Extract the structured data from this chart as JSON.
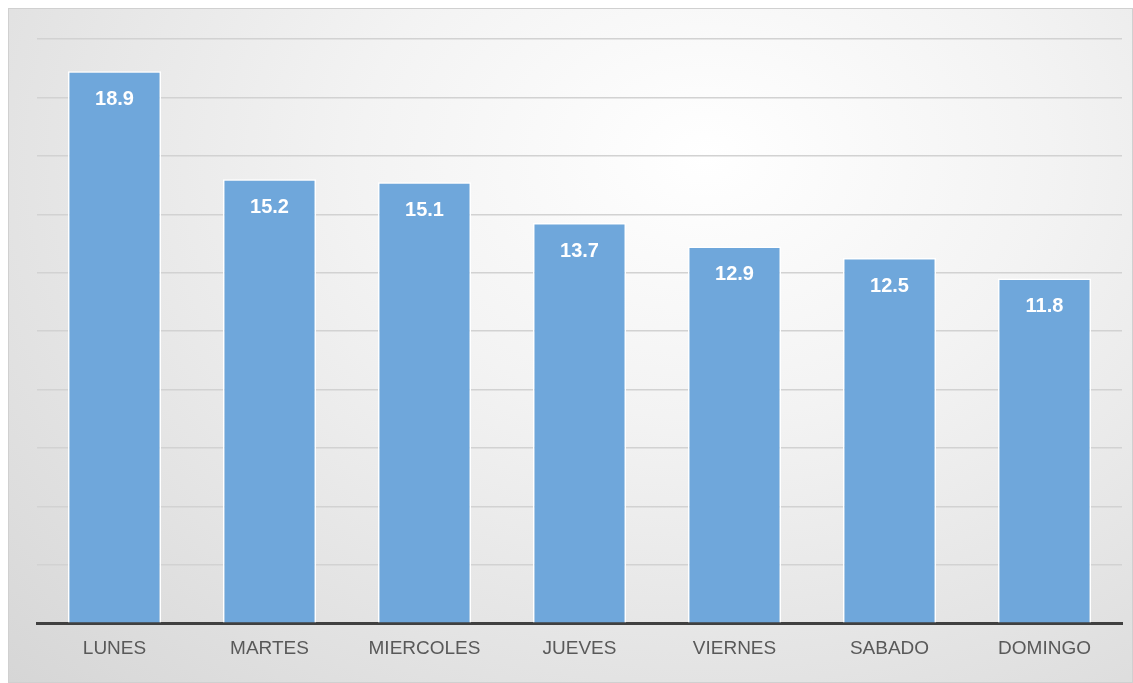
{
  "chart_data": {
    "type": "bar",
    "categories": [
      "LUNES",
      "MARTES",
      "MIERCOLES",
      "JUEVES",
      "VIERNES",
      "SABADO",
      "DOMINGO"
    ],
    "values": [
      18.9,
      15.2,
      15.1,
      13.7,
      12.9,
      12.5,
      11.8
    ],
    "color": "#6fa7db",
    "ylim": [
      0,
      20
    ],
    "yticks": [
      0,
      2,
      4,
      6,
      8,
      10,
      12,
      14,
      16,
      18,
      20
    ],
    "tick_labels": "x",
    "grid": "y",
    "legend": false,
    "data_labels": true
  }
}
